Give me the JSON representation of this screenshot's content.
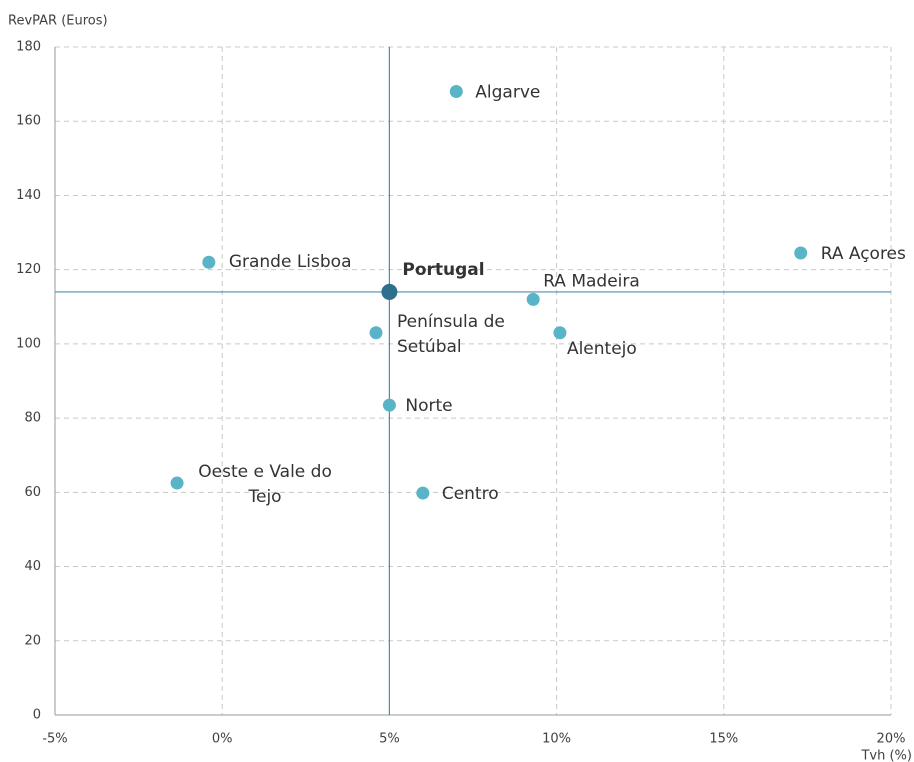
{
  "chart_data": {
    "type": "scatter",
    "y_label": "RevPAR (Euros)",
    "x_label": "Tvh (%)",
    "x": [
      7.0,
      -0.4,
      5.0,
      9.3,
      17.3,
      4.6,
      10.1,
      5.0,
      -1.35,
      6.0
    ],
    "values": [
      168,
      122,
      114,
      112,
      124.5,
      103,
      103,
      83.5,
      62.5,
      59.8
    ],
    "point_labels": [
      [
        "Algarve"
      ],
      [
        "Grande Lisboa"
      ],
      [
        "Portugal"
      ],
      [
        "RA Madeira"
      ],
      [
        "RA Açores"
      ],
      [
        "Península de",
        "Setúbal"
      ],
      [
        "Alentejo"
      ],
      [
        "Norte"
      ],
      [
        "Oeste e Vale do",
        "Tejo"
      ],
      [
        "Centro"
      ]
    ],
    "color": "#5ab4c8",
    "highlight_index": 2,
    "highlight_color": "#2e6f8e",
    "xlim": [
      -5,
      20
    ],
    "xticks": [
      {
        "value": -5,
        "label": "-5%"
      },
      {
        "value": 0,
        "label": "0%"
      },
      {
        "value": 5,
        "label": "5%"
      },
      {
        "value": 10,
        "label": "10%"
      },
      {
        "value": 15,
        "label": "15%"
      },
      {
        "value": 20,
        "label": "20%"
      }
    ],
    "ylim": [
      0,
      180
    ],
    "yticks": [
      0,
      20,
      40,
      60,
      80,
      100,
      120,
      140,
      160,
      180
    ],
    "grid": true
  }
}
